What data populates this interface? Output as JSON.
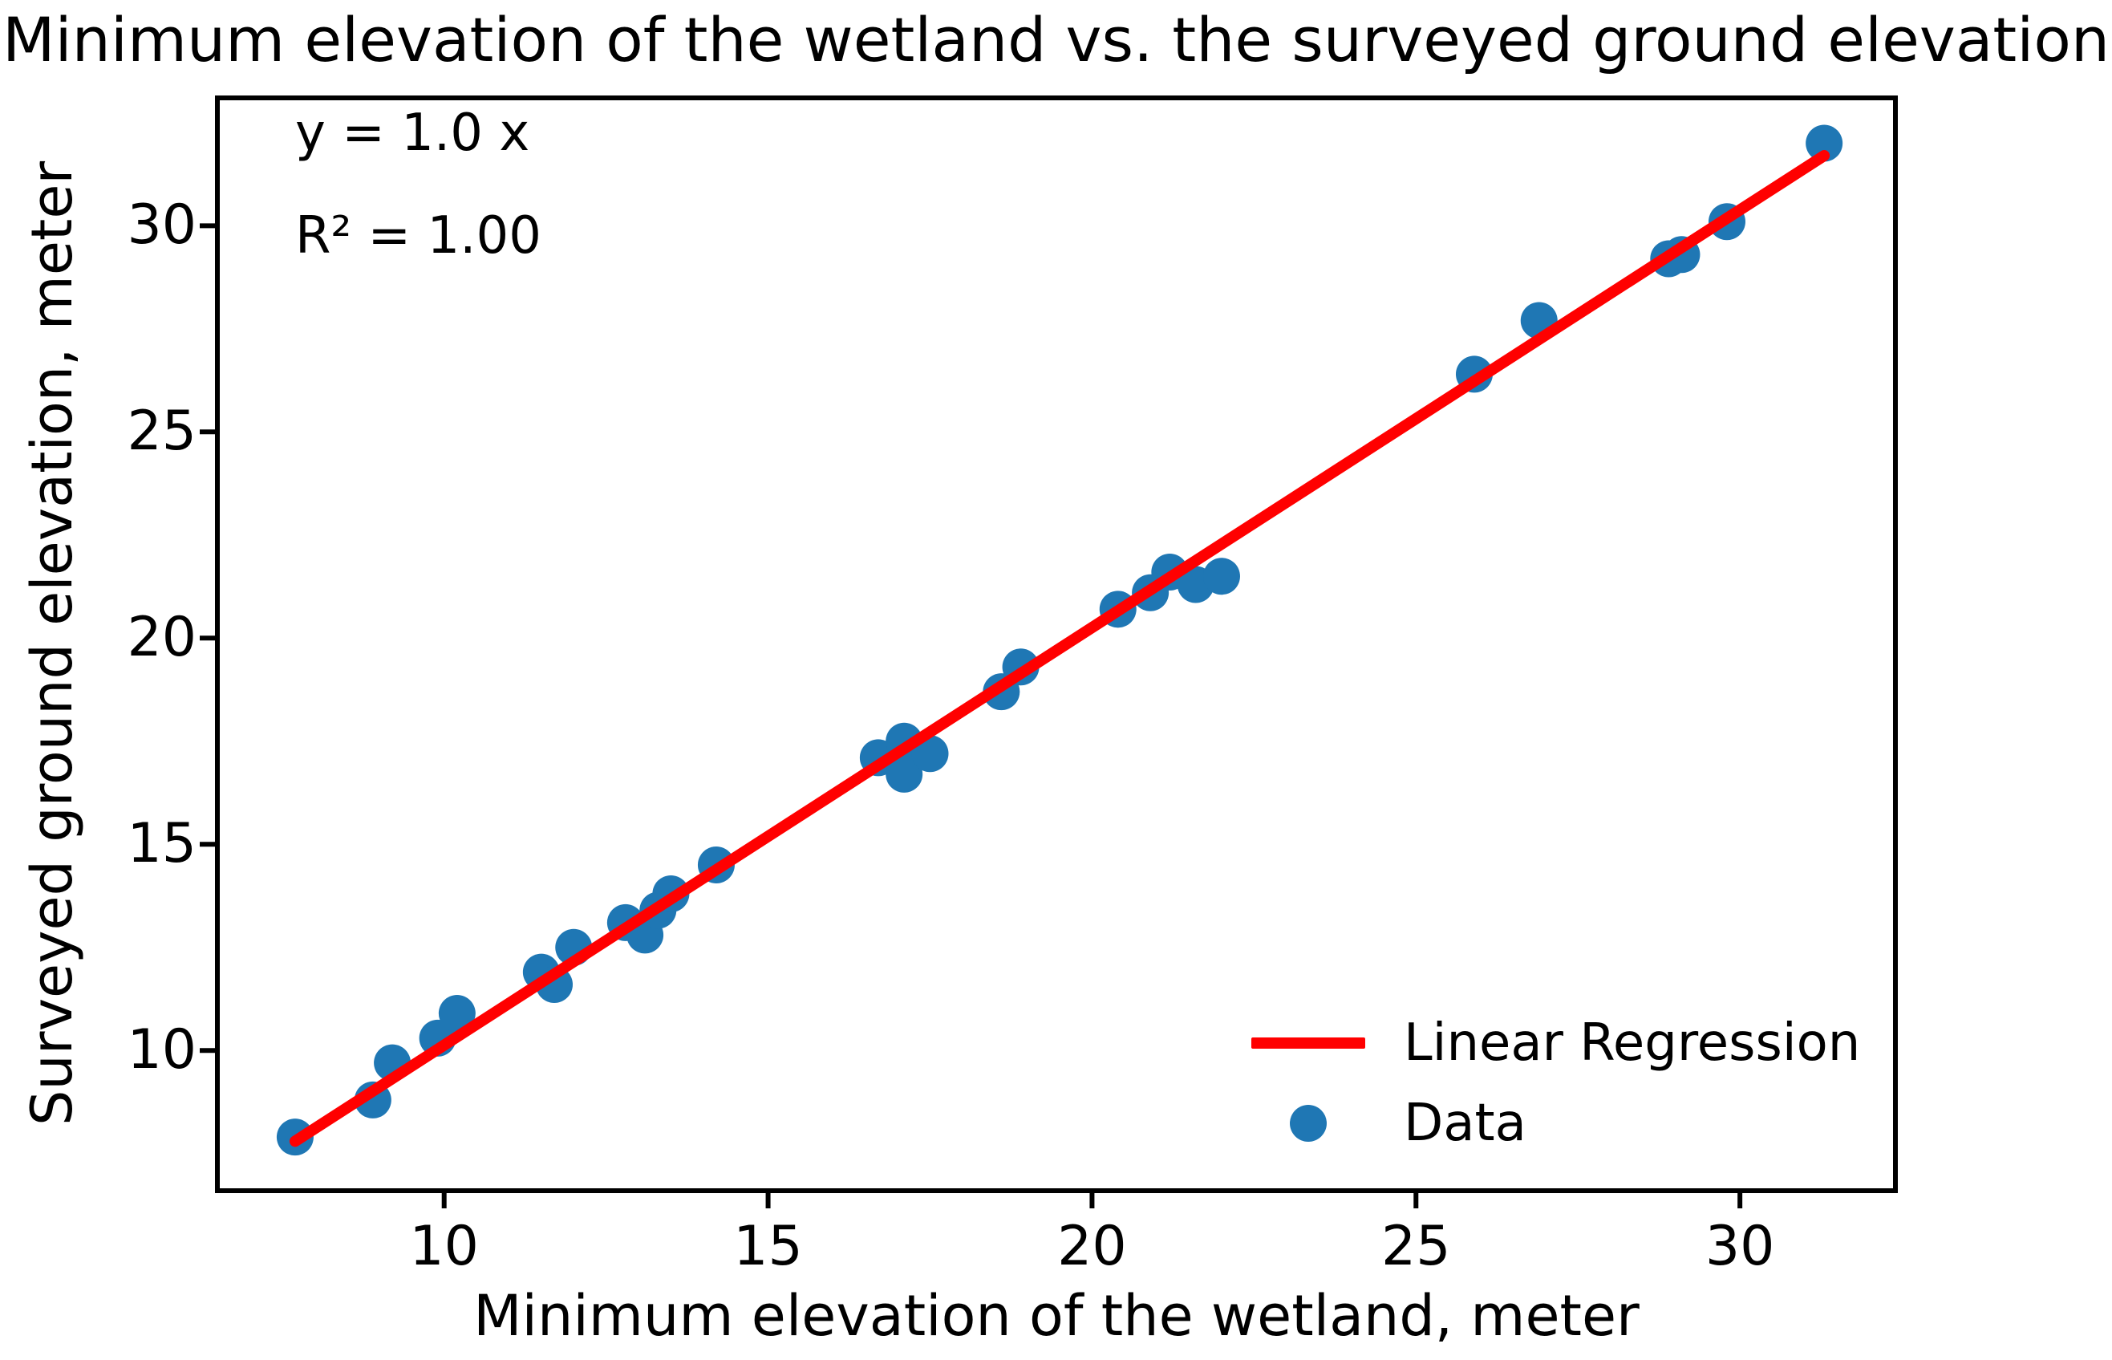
{
  "chart_data": {
    "type": "scatter",
    "title": "Minimum elevation of the wetland vs. the surveyed ground elevation",
    "xlabel": "Minimum elevation of the wetland, meter",
    "ylabel": "Surveyed ground elevation, meter",
    "xlim": [
      6.5,
      32.4
    ],
    "ylim": [
      6.6,
      33.1
    ],
    "xticks": [
      10,
      15,
      20,
      25,
      30
    ],
    "yticks": [
      10,
      15,
      20,
      25,
      30
    ],
    "grid": false,
    "background": "#ffffff",
    "spine_color": "#000000",
    "annotations": [
      "y = 1.0 x",
      "R² = 1.00"
    ],
    "series": [
      {
        "name": "Data",
        "type": "scatter",
        "color": "#1f77b4",
        "marker": "circle",
        "points": [
          [
            7.7,
            7.9
          ],
          [
            8.9,
            8.8
          ],
          [
            9.2,
            9.7
          ],
          [
            9.9,
            10.3
          ],
          [
            10.2,
            10.9
          ],
          [
            11.5,
            11.9
          ],
          [
            11.7,
            11.6
          ],
          [
            12.0,
            12.5
          ],
          [
            12.8,
            13.1
          ],
          [
            13.1,
            12.8
          ],
          [
            13.3,
            13.4
          ],
          [
            13.5,
            13.8
          ],
          [
            14.2,
            14.5
          ],
          [
            16.7,
            17.1
          ],
          [
            17.1,
            17.5
          ],
          [
            17.1,
            16.7
          ],
          [
            17.5,
            17.2
          ],
          [
            18.6,
            18.7
          ],
          [
            18.9,
            19.3
          ],
          [
            20.4,
            20.7
          ],
          [
            20.9,
            21.1
          ],
          [
            21.2,
            21.6
          ],
          [
            21.6,
            21.3
          ],
          [
            22.0,
            21.5
          ],
          [
            25.9,
            26.4
          ],
          [
            26.9,
            27.7
          ],
          [
            28.9,
            29.2
          ],
          [
            29.1,
            29.3
          ],
          [
            29.8,
            30.1
          ],
          [
            31.3,
            32.0
          ]
        ]
      },
      {
        "name": "Linear Regression",
        "type": "line",
        "color": "#ff0000",
        "points": [
          [
            7.7,
            7.8
          ],
          [
            31.3,
            31.7
          ]
        ]
      }
    ],
    "legend": {
      "position": "lower right",
      "frame": false,
      "entries": [
        {
          "label": "Linear Regression",
          "marker": "line",
          "color": "#ff0000"
        },
        {
          "label": "Data",
          "marker": "dot",
          "color": "#1f77b4"
        }
      ]
    }
  }
}
